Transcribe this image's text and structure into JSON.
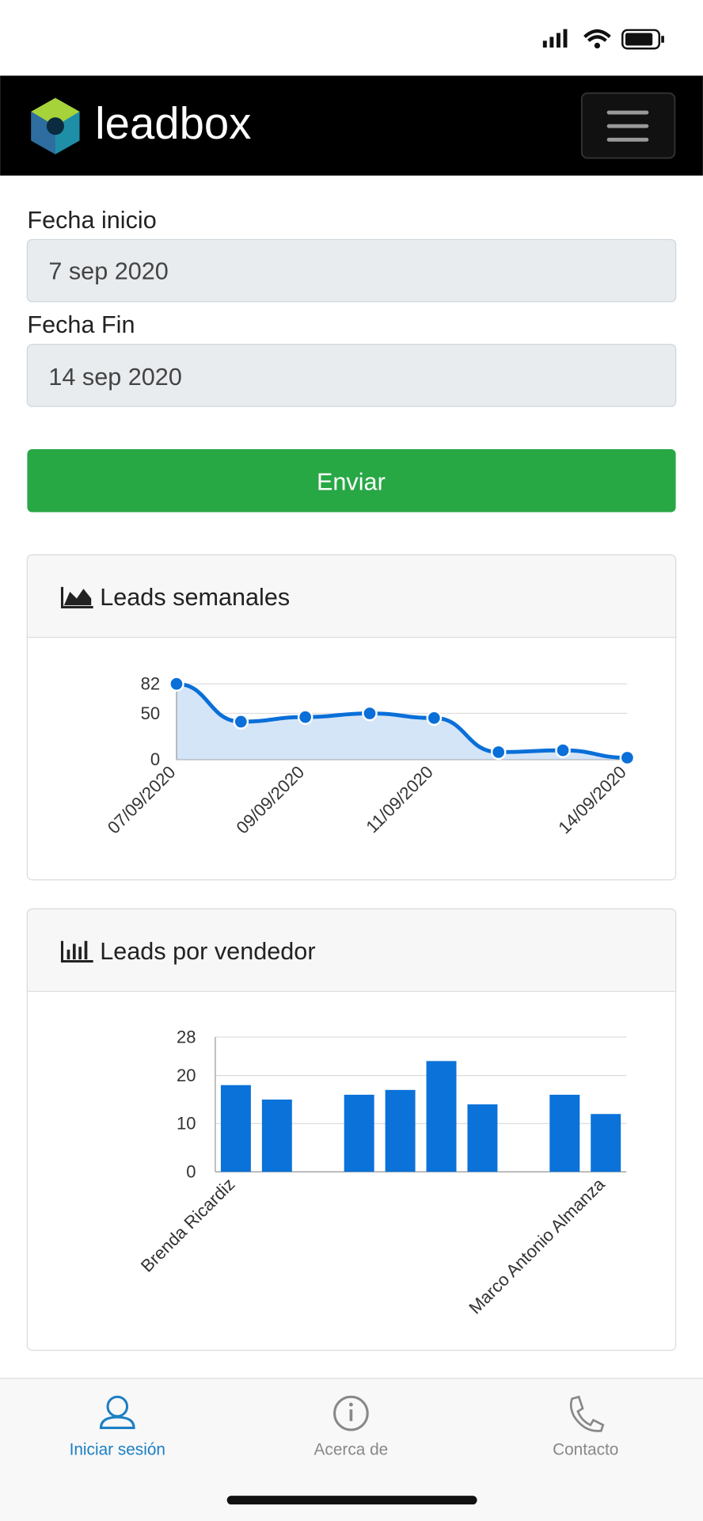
{
  "header": {
    "brand": "leadbox"
  },
  "form": {
    "start_label": "Fecha inicio",
    "start_value": "7 sep 2020",
    "end_label": "Fecha Fin",
    "end_value": "14 sep 2020",
    "submit": "Enviar"
  },
  "chart_data": [
    {
      "type": "line",
      "title": "Leads semanales",
      "x": [
        "07/09/2020",
        null,
        "09/09/2020",
        null,
        "11/09/2020",
        null,
        null,
        "14/09/2020"
      ],
      "values": [
        82,
        41,
        46,
        50,
        45,
        8,
        10,
        2
      ],
      "ylim": [
        0,
        82
      ],
      "yticks": [
        0,
        50,
        82
      ],
      "grid": true,
      "color": "#0a6fd8",
      "fill_color": "#cfe2f7"
    },
    {
      "type": "bar",
      "title": "Leads por vendedor",
      "categories": [
        "Brenda Ricardiz",
        null,
        null,
        null,
        null,
        null,
        null,
        null,
        null,
        "Marco Antonio Almanza"
      ],
      "values": [
        18,
        15,
        0,
        16,
        17,
        23,
        14,
        0,
        16,
        12
      ],
      "ylim": [
        0,
        28
      ],
      "yticks": [
        0,
        10,
        20,
        28
      ],
      "grid": true,
      "color": "#0b72d9"
    }
  ],
  "tab_bar": {
    "items": [
      "Iniciar sesión",
      "Acerca de",
      "Contacto"
    ]
  }
}
